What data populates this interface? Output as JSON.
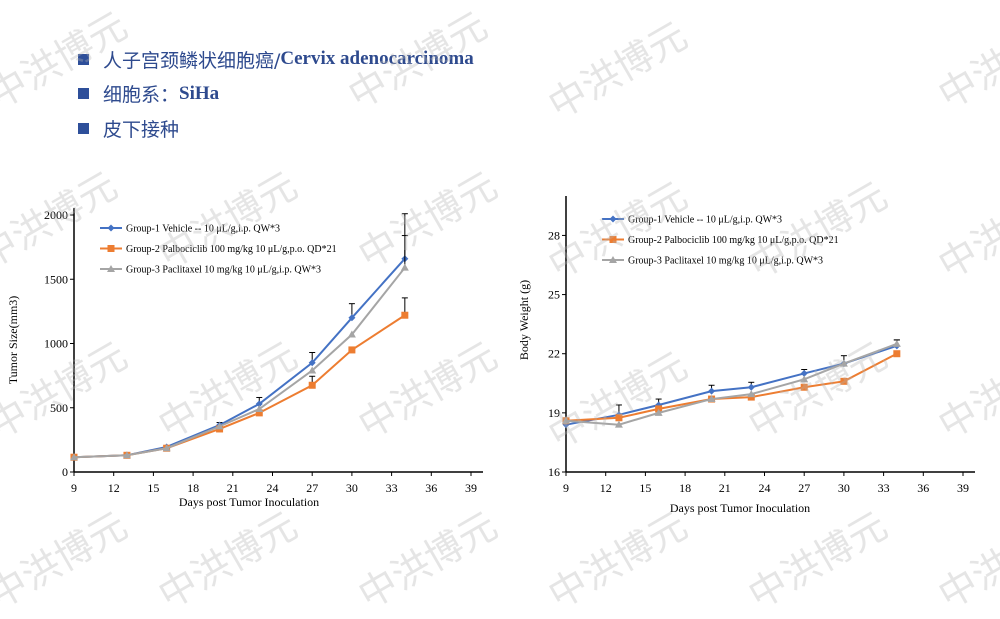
{
  "bullets": [
    {
      "cn": "人子宫颈鳞状细胞癌/",
      "en": "Cervix adenocarcinoma"
    },
    {
      "cn": "细胞系：",
      "en": "SiHa"
    },
    {
      "cn": "皮下接种",
      "en": ""
    }
  ],
  "watermark": "中洪博元",
  "colors": {
    "group1": "#4472C4",
    "group2": "#ED7D31",
    "group3": "#A5A5A5",
    "text": "#2E4A8E"
  },
  "chart_data": [
    {
      "type": "line",
      "xlabel": "Days post Tumor Inoculation",
      "ylabel": "Tumor Size(mm3)",
      "xlim": [
        9,
        39
      ],
      "ylim": [
        0,
        2000
      ],
      "xticks": [
        9,
        12,
        15,
        18,
        21,
        24,
        27,
        30,
        33,
        36,
        39
      ],
      "yticks": [
        0,
        500,
        1000,
        1500,
        2000
      ],
      "legend_position": "top-left",
      "x": [
        9,
        13,
        16,
        20,
        23,
        27,
        30,
        34
      ],
      "series": [
        {
          "name": "Group-1 Vehicle -- 10 μL/g,i.p. QW*3",
          "marker": "diamond",
          "values": [
            115,
            130,
            195,
            365,
            530,
            850,
            1200,
            1660
          ],
          "errors": [
            0,
            0,
            0,
            20,
            50,
            80,
            110,
            350
          ]
        },
        {
          "name": "Group-2 Palbociclib 100 mg/kg 10 μL/g,p.o. QD*21",
          "marker": "square",
          "values": [
            115,
            130,
            185,
            335,
            460,
            675,
            950,
            1220
          ],
          "errors": [
            0,
            0,
            0,
            0,
            0,
            70,
            0,
            135
          ]
        },
        {
          "name": "Group-3 Paclitaxel 10 mg/kg 10 μL/g,i.p. QW*3",
          "marker": "triangle",
          "values": [
            115,
            130,
            185,
            355,
            490,
            790,
            1070,
            1590
          ],
          "errors": [
            0,
            0,
            0,
            0,
            0,
            0,
            0,
            250
          ]
        }
      ]
    },
    {
      "type": "line",
      "xlabel": "Days post Tumor Inoculation",
      "ylabel": "Body Weight (g)",
      "xlim": [
        9,
        39
      ],
      "ylim": [
        16,
        30
      ],
      "xticks": [
        9,
        12,
        15,
        18,
        21,
        24,
        27,
        30,
        33,
        36,
        39
      ],
      "yticks": [
        16,
        19,
        22,
        25,
        28
      ],
      "legend_position": "top-left",
      "x": [
        9,
        13,
        16,
        20,
        23,
        27,
        30,
        34
      ],
      "series": [
        {
          "name": "Group-1 Vehicle -- 10 μL/g,i.p. QW*3",
          "marker": "diamond",
          "values": [
            18.4,
            18.9,
            19.4,
            20.1,
            20.3,
            21.0,
            21.5,
            22.4
          ],
          "errors": [
            0,
            0.5,
            0.3,
            0.3,
            0.25,
            0.2,
            0.4,
            0.3
          ]
        },
        {
          "name": "Group-2 Palbociclib 100 mg/kg 10 μL/g,p.o. QD*21",
          "marker": "square",
          "values": [
            18.6,
            18.75,
            19.2,
            19.7,
            19.8,
            20.3,
            20.6,
            22.0
          ],
          "errors": [
            0,
            0,
            0,
            0,
            0,
            0,
            0,
            0
          ]
        },
        {
          "name": "Group-3 Paclitaxel 10 mg/kg 10 μL/g,i.p. QW*3",
          "marker": "triangle",
          "values": [
            18.6,
            18.4,
            19.0,
            19.7,
            19.95,
            20.7,
            21.5,
            22.5
          ],
          "errors": [
            0,
            0,
            0,
            0,
            0,
            0,
            0,
            0.2
          ]
        }
      ]
    }
  ]
}
